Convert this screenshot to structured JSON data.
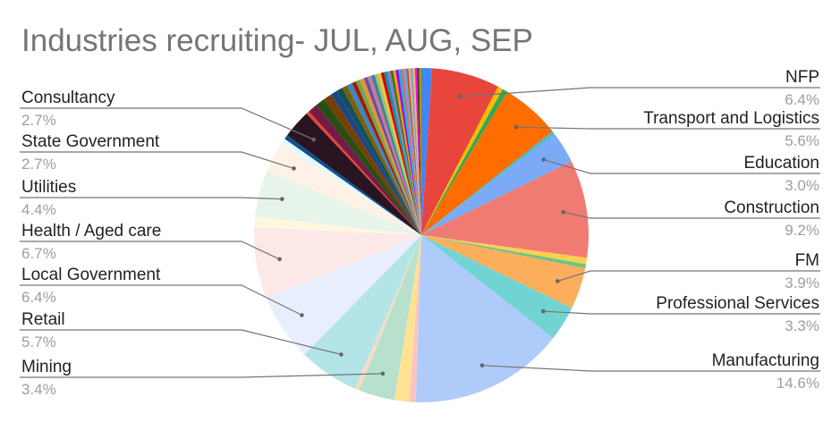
{
  "chart_data": {
    "type": "pie",
    "title": "Industries recruiting- JUL, AUG, SEP",
    "labeled_slices": [
      {
        "name": "NFP",
        "value": 6.4,
        "value_label": "6.4%",
        "color": "#e8453c",
        "side": "right"
      },
      {
        "name": "Transport and Logistics",
        "value": 5.6,
        "value_label": "5.6%",
        "color": "#ff6d00",
        "side": "right"
      },
      {
        "name": "Education",
        "value": 3.0,
        "value_label": "3.0%",
        "color": "#7baaf7",
        "side": "right"
      },
      {
        "name": "Construction",
        "value": 9.2,
        "value_label": "9.2%",
        "color": "#f07b72",
        "side": "right"
      },
      {
        "name": "FM",
        "value": 3.9,
        "value_label": "3.9%",
        "color": "#fcae5c",
        "side": "right"
      },
      {
        "name": "Professional Services",
        "value": 3.3,
        "value_label": "3.3%",
        "color": "#71d4d2",
        "side": "right"
      },
      {
        "name": "Manufacturing",
        "value": 14.6,
        "value_label": "14.6%",
        "color": "#aecbfa",
        "side": "right"
      },
      {
        "name": "Mining",
        "value": 3.4,
        "value_label": "3.4%",
        "color": "#b7e1cd",
        "side": "left"
      },
      {
        "name": "Retail",
        "value": 5.7,
        "value_label": "5.7%",
        "color": "#b3e5e8",
        "side": "left"
      },
      {
        "name": "Local Government",
        "value": 6.4,
        "value_label": "6.4%",
        "color": "#e8eefc",
        "side": "left"
      },
      {
        "name": "Health / Aged care",
        "value": 6.7,
        "value_label": "6.7%",
        "color": "#fde8e8",
        "side": "left"
      },
      {
        "name": "Utilities",
        "value": 4.4,
        "value_label": "4.4%",
        "color": "#e6f4ea",
        "side": "left"
      },
      {
        "name": "State Government",
        "value": 2.7,
        "value_label": "2.7%",
        "color": "#fef1e6",
        "side": "left"
      },
      {
        "name": "Consultancy",
        "value": 2.7,
        "value_label": "2.7%",
        "color": "#2a1421",
        "side": "left"
      }
    ],
    "slices_clockwise_from_top": [
      {
        "value": 1.0,
        "color": "#4285f4"
      },
      {
        "value": 6.4,
        "color": "#e8453c",
        "label_index": 0
      },
      {
        "value": 0.5,
        "color": "#fbbc04"
      },
      {
        "value": 0.5,
        "color": "#34a853"
      },
      {
        "value": 5.6,
        "color": "#ff6d00",
        "label_index": 1
      },
      {
        "value": 0.3,
        "color": "#46bdc6"
      },
      {
        "value": 3.0,
        "color": "#7baaf7",
        "label_index": 2
      },
      {
        "value": 9.2,
        "color": "#f07b72",
        "label_index": 3
      },
      {
        "value": 0.6,
        "color": "#fcd04f"
      },
      {
        "value": 0.4,
        "color": "#71c287"
      },
      {
        "value": 3.9,
        "color": "#fcae5c",
        "label_index": 4
      },
      {
        "value": 3.3,
        "color": "#71d4d2",
        "label_index": 5
      },
      {
        "value": 14.6,
        "color": "#aecbfa",
        "label_index": 6
      },
      {
        "value": 0.6,
        "color": "#f9c4c1"
      },
      {
        "value": 1.4,
        "color": "#fde293"
      },
      {
        "value": 3.4,
        "color": "#b7e1cd",
        "label_index": 7
      },
      {
        "value": 0.4,
        "color": "#fedac4"
      },
      {
        "value": 5.7,
        "color": "#b3e5e8",
        "label_index": 8
      },
      {
        "value": 6.4,
        "color": "#e8eefc",
        "label_index": 9
      },
      {
        "value": 6.7,
        "color": "#fde8e8",
        "label_index": 10
      },
      {
        "value": 1.0,
        "color": "#fef7e0"
      },
      {
        "value": 4.4,
        "color": "#e6f4ea",
        "label_index": 11
      },
      {
        "value": 2.7,
        "color": "#fef1e6",
        "label_index": 12
      },
      {
        "value": 0.7,
        "color": "#e8f7f8"
      },
      {
        "value": 0.4,
        "color": "#0b5394"
      },
      {
        "value": 2.7,
        "color": "#2a1421",
        "label_index": 13
      },
      {
        "value": 0.3,
        "color": "#ea4335"
      },
      {
        "value": 0.9,
        "color": "#741b47"
      },
      {
        "value": 0.9,
        "color": "#274e13"
      },
      {
        "value": 0.8,
        "color": "#783f04"
      },
      {
        "value": 0.6,
        "color": "#1c4587"
      },
      {
        "value": 0.6,
        "color": "#134f5c"
      },
      {
        "value": 0.5,
        "color": "#7f6000"
      },
      {
        "value": 0.5,
        "color": "#3d85c6"
      },
      {
        "value": 0.4,
        "color": "#a61c00"
      },
      {
        "value": 0.4,
        "color": "#6aa84f"
      },
      {
        "value": 0.4,
        "color": "#e69138"
      },
      {
        "value": 0.35,
        "color": "#674ea7"
      },
      {
        "value": 0.35,
        "color": "#c27ba0"
      },
      {
        "value": 0.35,
        "color": "#45818e"
      },
      {
        "value": 0.3,
        "color": "#93c47d"
      },
      {
        "value": 0.3,
        "color": "#f1c232"
      },
      {
        "value": 0.3,
        "color": "#cc0000"
      },
      {
        "value": 0.3,
        "color": "#0097a7"
      },
      {
        "value": 0.3,
        "color": "#8e7cc3"
      },
      {
        "value": 0.25,
        "color": "#38761d"
      },
      {
        "value": 0.25,
        "color": "#ff9900"
      },
      {
        "value": 0.25,
        "color": "#9900ff"
      },
      {
        "value": 0.25,
        "color": "#00bcd4"
      },
      {
        "value": 0.25,
        "color": "#e06666"
      },
      {
        "value": 0.25,
        "color": "#6d9eeb"
      },
      {
        "value": 0.2,
        "color": "#b45f06"
      },
      {
        "value": 0.2,
        "color": "#d5a6bd"
      },
      {
        "value": 0.2,
        "color": "#76a5af"
      },
      {
        "value": 0.2,
        "color": "#f6b26b"
      },
      {
        "value": 0.2,
        "color": "#ff00ff"
      },
      {
        "value": 0.2,
        "color": "#274e13"
      },
      {
        "value": 0.2,
        "color": "#bf9000"
      }
    ]
  }
}
